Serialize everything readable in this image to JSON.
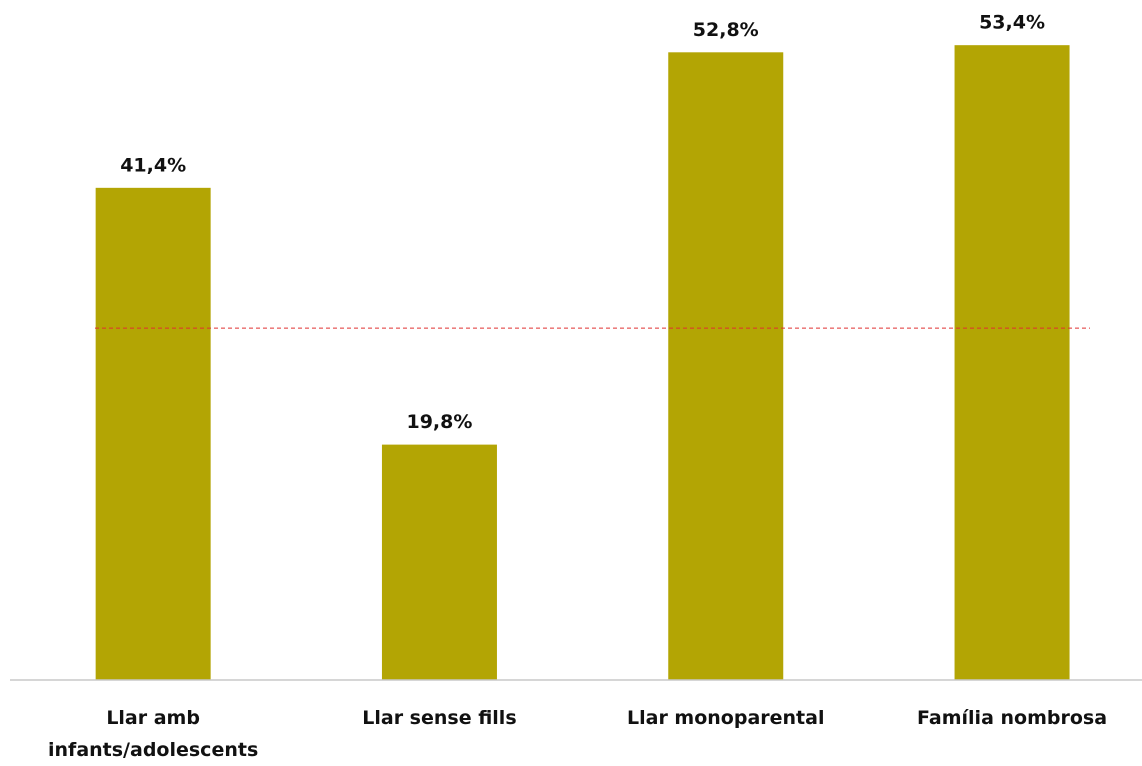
{
  "chart_data": {
    "type": "bar",
    "categories": [
      "Llar amb infants/adolescents",
      "Llar sense fills",
      "Llar monoparental",
      "Família nombrosa"
    ],
    "values": [
      41.4,
      19.8,
      52.8,
      53.4
    ],
    "value_labels": [
      "41,4%",
      "19,8%",
      "52,8%",
      "53,4%"
    ],
    "color": "#b3a504",
    "ylim": [
      0,
      57.2
    ],
    "reference_line": {
      "value": 29.6,
      "color": "#e03030"
    }
  }
}
